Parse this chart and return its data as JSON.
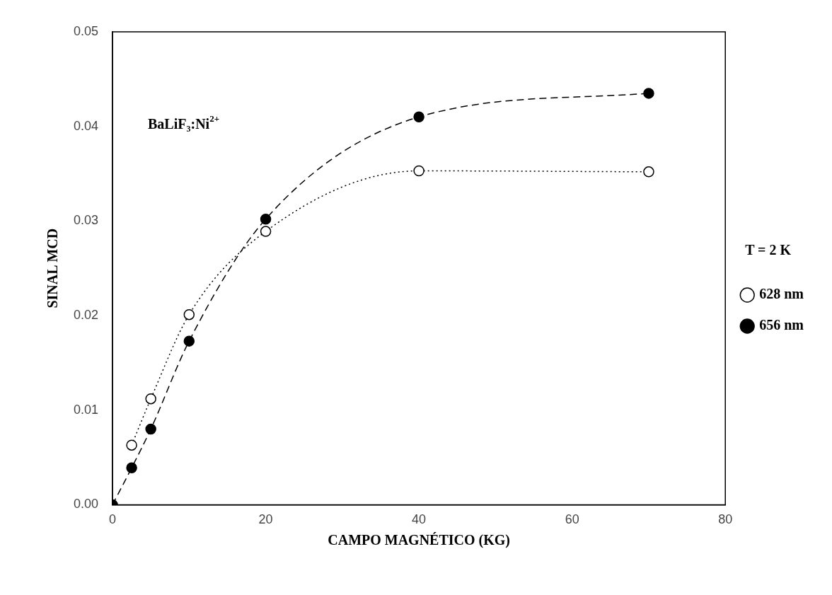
{
  "chart_data": {
    "type": "scatter",
    "xlabel": "CAMPO MAGNÉTICO (KG)",
    "ylabel": "SINAL MCD",
    "legend_title": "T = 2 K",
    "legend": "right",
    "grid": false,
    "marker": "circle",
    "xlim": [
      0,
      80
    ],
    "xticks": [
      0,
      20,
      40,
      60,
      80
    ],
    "ylim": [
      0,
      0.05
    ],
    "yticks": [
      {
        "value": 0,
        "label": "0.00"
      },
      0.01,
      0.02,
      0.03,
      0.04,
      0.05
    ],
    "annotations": [
      "BaLiF₃:Ni$^{2+}$"
    ],
    "series": [
      {
        "name": "628 nm",
        "color": "#000000",
        "line_style": "dotted",
        "x": [
          2.5,
          5,
          10,
          20,
          40,
          70
        ],
        "type": "line",
        "values": [
          0.0063,
          0.0112,
          0.0201,
          0.0289,
          0.0353,
          0.0352
        ]
      },
      {
        "name": "656 nm",
        "color": "#000000",
        "line_style": "dashed",
        "type": "line",
        "x": [
          0,
          2.5,
          5,
          10,
          20,
          40,
          70
        ],
        "values": [
          0,
          0.0039,
          0.008,
          0.0173,
          0.0302,
          0.041,
          0.0435
        ]
      }
    ]
  }
}
